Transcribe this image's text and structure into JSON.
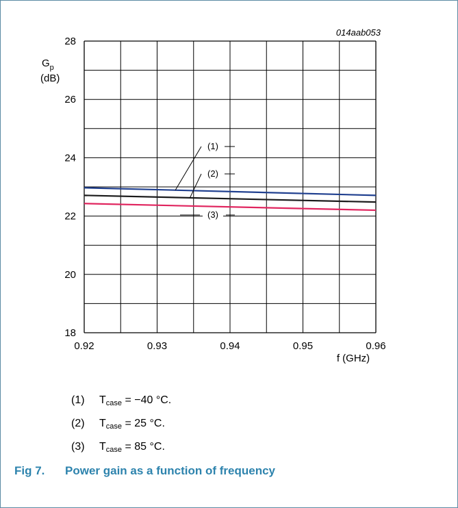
{
  "figure_id": "014aab053",
  "caption": {
    "number": "Fig 7.",
    "text": "Power gain as a function of frequency"
  },
  "colors": {
    "border": "#5a8aa3",
    "caption": "#2d83ad",
    "series1": "#1f3f8f",
    "series2": "#1a1a1a",
    "series3": "#e0245e"
  },
  "legend": [
    {
      "num": "(1)",
      "var": "T",
      "sub": "case",
      "rest": " = −40 °C."
    },
    {
      "num": "(2)",
      "var": "T",
      "sub": "case",
      "rest": " = 25 °C."
    },
    {
      "num": "(3)",
      "var": "T",
      "sub": "case",
      "rest": " = 85 °C."
    }
  ],
  "chart_data": {
    "type": "line",
    "ylabel": {
      "main": "G",
      "sub": "p",
      "unit": "(dB)"
    },
    "xlabel": "f (GHz)",
    "xlim": [
      0.92,
      0.96
    ],
    "ylim": [
      18,
      28
    ],
    "x_ticks": [
      "0.92",
      "0.93",
      "0.94",
      "0.95",
      "0.96"
    ],
    "y_ticks": [
      "18",
      "20",
      "22",
      "24",
      "26",
      "28"
    ],
    "grid": true,
    "series": [
      {
        "name": "(1)",
        "x": [
          0.92,
          0.96
        ],
        "y": [
          22.97,
          22.71
        ]
      },
      {
        "name": "(2)",
        "x": [
          0.92,
          0.96
        ],
        "y": [
          22.71,
          22.48
        ]
      },
      {
        "name": "(3)",
        "x": [
          0.92,
          0.96
        ],
        "y": [
          22.43,
          22.2
        ]
      }
    ]
  }
}
